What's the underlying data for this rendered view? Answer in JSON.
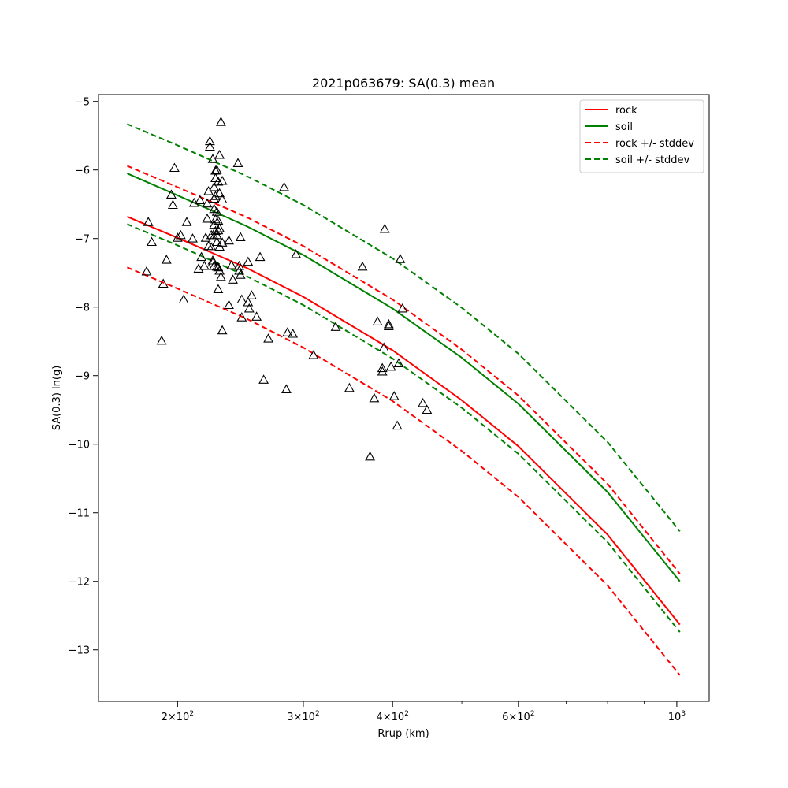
{
  "chart_data": {
    "type": "scatter",
    "title": "2021p063679: SA(0.3) mean",
    "xlabel": "Rrup (km)",
    "ylabel": "SA(0.3) ln(g)",
    "xscale": "log",
    "xlim": [
      155,
      1110
    ],
    "ylim": [
      -13.75,
      -4.9
    ],
    "x_major_ticks": [
      {
        "value": 200,
        "label": "2×10",
        "exp": "2"
      },
      {
        "value": 300,
        "label": "3×10",
        "exp": "2"
      },
      {
        "value": 400,
        "label": "4×10",
        "exp": "2"
      },
      {
        "value": 600,
        "label": "6×10",
        "exp": "2"
      },
      {
        "value": 1000,
        "label": "10",
        "exp": "3"
      }
    ],
    "x_minor_ticks": [
      500,
      700,
      800,
      900
    ],
    "y_ticks": [
      {
        "value": -5,
        "label": "−5"
      },
      {
        "value": -6,
        "label": "−6"
      },
      {
        "value": -7,
        "label": "−7"
      },
      {
        "value": -8,
        "label": "−8"
      },
      {
        "value": -9,
        "label": "−9"
      },
      {
        "value": -10,
        "label": "−10"
      },
      {
        "value": -11,
        "label": "−11"
      },
      {
        "value": -12,
        "label": "−12"
      },
      {
        "value": -13,
        "label": "−13"
      }
    ],
    "grid": false,
    "legend_position": "top-right",
    "lines": [
      {
        "name": "rock",
        "color": "#ff0000",
        "dash": "solid",
        "x": [
          170,
          200,
          250,
          300,
          400,
          500,
          600,
          800,
          1010
        ],
        "y": [
          -6.68,
          -6.99,
          -7.43,
          -7.85,
          -8.63,
          -9.36,
          -10.03,
          -11.32,
          -12.63
        ]
      },
      {
        "name": "soil",
        "color": "#008000",
        "dash": "solid",
        "x": [
          170,
          200,
          250,
          300,
          400,
          500,
          600,
          800,
          1010
        ],
        "y": [
          -6.05,
          -6.37,
          -6.82,
          -7.24,
          -8.02,
          -8.74,
          -9.41,
          -10.7,
          -12.0
        ]
      },
      {
        "name": "rock +/- stddev",
        "color": "#ff0000",
        "dash": "dashed",
        "x": [
          170,
          200,
          250,
          300,
          400,
          500,
          600,
          800,
          1010
        ],
        "y": [
          -5.94,
          -6.25,
          -6.69,
          -7.11,
          -7.89,
          -8.62,
          -9.29,
          -10.58,
          -11.89
        ]
      },
      {
        "name": "",
        "color": "#ff0000",
        "dash": "dashed",
        "x": [
          170,
          200,
          250,
          300,
          400,
          500,
          600,
          800,
          1010
        ],
        "y": [
          -7.42,
          -7.73,
          -8.17,
          -8.59,
          -9.37,
          -10.1,
          -10.77,
          -12.06,
          -13.37
        ]
      },
      {
        "name": "soil +/- stddev",
        "color": "#008000",
        "dash": "dashed",
        "x": [
          170,
          200,
          250,
          300,
          400,
          500,
          600,
          800,
          1010
        ],
        "y": [
          -5.33,
          -5.64,
          -6.09,
          -6.51,
          -7.29,
          -8.01,
          -8.68,
          -9.97,
          -11.27
        ]
      },
      {
        "name": "",
        "color": "#008000",
        "dash": "dashed",
        "x": [
          170,
          200,
          250,
          300,
          400,
          500,
          600,
          800,
          1010
        ],
        "y": [
          -6.79,
          -7.1,
          -7.55,
          -7.97,
          -8.75,
          -9.47,
          -10.14,
          -11.43,
          -12.74
        ]
      }
    ],
    "legend": [
      {
        "label": "rock",
        "color": "#ff0000",
        "dash": "solid"
      },
      {
        "label": "soil",
        "color": "#008000",
        "dash": "solid"
      },
      {
        "label": "rock +/- stddev",
        "color": "#ff0000",
        "dash": "dashed"
      },
      {
        "label": "soil +/- stddev",
        "color": "#008000",
        "dash": "dashed"
      }
    ],
    "points": {
      "marker": "triangle-open",
      "color": "#000000",
      "x": [
        181,
        182,
        184,
        190,
        191,
        193,
        196,
        197,
        198,
        200,
        202,
        204,
        206,
        210,
        211,
        214,
        215,
        216,
        218,
        219,
        220,
        220,
        221,
        221,
        222,
        222,
        223,
        223,
        224,
        224,
        224,
        225,
        225,
        225,
        225,
        225,
        225,
        226,
        226,
        226,
        226,
        226,
        227,
        227,
        227,
        227,
        227,
        228,
        228,
        228,
        228,
        228,
        229,
        229,
        229,
        229,
        229,
        230,
        230,
        231,
        231,
        231,
        231,
        236,
        236,
        238,
        239,
        243,
        244,
        244,
        245,
        245,
        246,
        246,
        251,
        251,
        252,
        254,
        258,
        261,
        264,
        268,
        282,
        284,
        285,
        290,
        293,
        310,
        333,
        348,
        363,
        372,
        377,
        381,
        387,
        387,
        389,
        390,
        395,
        395,
        398,
        402,
        406,
        408,
        410,
        413,
        441,
        447
      ],
      "y": [
        -7.48,
        -6.76,
        -7.05,
        -8.49,
        -7.66,
        -7.31,
        -6.36,
        -6.51,
        -5.97,
        -6.99,
        -6.95,
        -7.89,
        -6.76,
        -7.0,
        -6.48,
        -7.44,
        -6.44,
        -7.27,
        -7.4,
        -6.99,
        -6.71,
        -6.49,
        -7.11,
        -6.31,
        -5.58,
        -5.66,
        -7.13,
        -6.95,
        -5.84,
        -7.32,
        -7.35,
        -6.25,
        -6.42,
        -6.57,
        -6.8,
        -7.4,
        -6.97,
        -6.01,
        -6.12,
        -6.38,
        -6.72,
        -6.89,
        -6.0,
        -6.61,
        -6.95,
        -7.05,
        -7.41,
        -6.17,
        -6.74,
        -7.74,
        -7.42,
        -6.88,
        -5.78,
        -6.34,
        -6.85,
        -7.12,
        -7.47,
        -5.3,
        -7.56,
        -6.16,
        -6.43,
        -7.06,
        -8.34,
        -7.97,
        -7.03,
        -7.39,
        -7.6,
        -5.9,
        -7.4,
        -7.47,
        -6.98,
        -7.53,
        -7.89,
        -8.15,
        -7.93,
        -7.34,
        -8.02,
        -7.83,
        -8.14,
        -7.27,
        -9.06,
        -8.46,
        -6.25,
        -9.2,
        -8.37,
        -8.39,
        -7.23,
        -8.7,
        -8.29,
        -9.18,
        -7.41,
        -10.18,
        -9.33,
        -8.21,
        -8.89,
        -8.94,
        -8.59,
        -6.86,
        -8.28,
        -8.25,
        -8.87,
        -9.3,
        -9.73,
        -8.82,
        -7.3,
        -8.02,
        -9.4,
        -9.5
      ]
    }
  }
}
